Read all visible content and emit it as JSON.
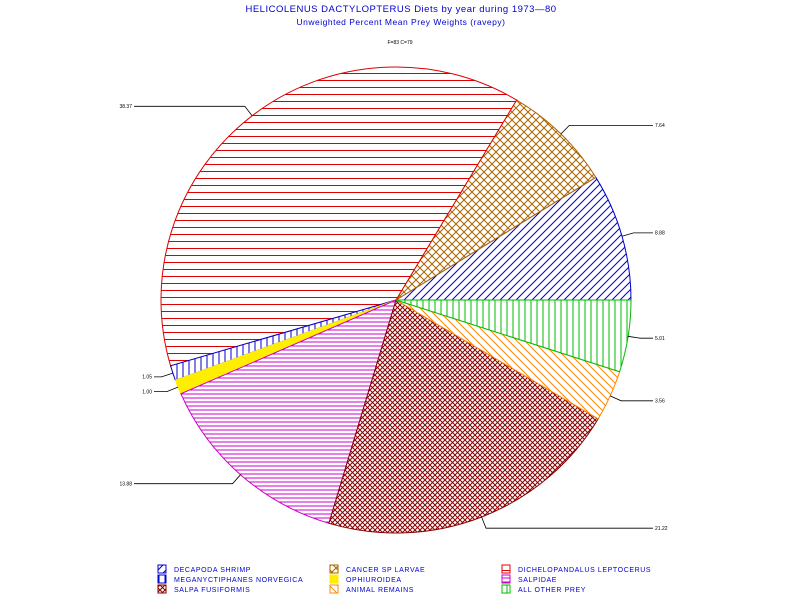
{
  "chart_data": {
    "type": "pie",
    "title": "HELICOLENUS  DACTYLOPTERUS  Diets  by  year  during  1973—80",
    "subtitle": "Unweighted  Percent  Mean  Prey  Weights  (ravepy)",
    "note": "F=83  C=79",
    "legend_position": "bottom",
    "slices": [
      {
        "label": "DECAPODA SHRIMP",
        "value": 8.88,
        "display": "8.88",
        "color": "#0000cc",
        "pattern": "diag-right"
      },
      {
        "label": "CANCER SP LARVAE",
        "value": 7.64,
        "display": "7.64",
        "color": "#aa6600",
        "pattern": "crosshatch"
      },
      {
        "label": "DICHELOPANDALUS LEPTOCERUS",
        "value": 38.37,
        "display": "38.37",
        "color": "#dd0000",
        "pattern": "horizontal"
      },
      {
        "label": "MEGANYCTIPHANES NORVEGICA",
        "value": 1.05,
        "display": "1.05",
        "color": "#0000cc",
        "pattern": "vertical"
      },
      {
        "label": "OPHIUROIDEA",
        "value": 1.0,
        "display": "1.00",
        "color": "#ffee00",
        "pattern": "solid"
      },
      {
        "label": "SALPIDAE",
        "value": 13.88,
        "display": "13.88",
        "color": "#cc00cc",
        "pattern": "horizontal-dense"
      },
      {
        "label": "SALPA FUSIFORMIS",
        "value": 21.22,
        "display": "21.22",
        "color": "#880000",
        "pattern": "crosshatch-dense"
      },
      {
        "label": "ANIMAL REMAINS",
        "value": 3.56,
        "display": "3.56",
        "color": "#ff8800",
        "pattern": "diag-left"
      },
      {
        "label": "ALL OTHER PREY",
        "value": 5.01,
        "display": "5.01",
        "color": "#00bb00",
        "pattern": "vertical"
      }
    ],
    "legend": [
      {
        "label": "DECAPODA  SHRIMP",
        "color": "#0000cc",
        "pattern": "diag-right"
      },
      {
        "label": "CANCER  SP  LARVAE",
        "color": "#aa6600",
        "pattern": "crosshatch"
      },
      {
        "label": "DICHELOPANDALUS  LEPTOCERUS",
        "color": "#dd0000",
        "pattern": "horizontal"
      },
      {
        "label": "MEGANYCTIPHANES  NORVEGICA",
        "color": "#0000cc",
        "pattern": "vertical"
      },
      {
        "label": "OPHIUROIDEA",
        "color": "#ffee00",
        "pattern": "solid"
      },
      {
        "label": "SALPIDAE",
        "color": "#cc00cc",
        "pattern": "horizontal-dense"
      },
      {
        "label": "SALPA  FUSIFORMIS",
        "color": "#880000",
        "pattern": "crosshatch-dense"
      },
      {
        "label": "ANIMAL  REMAINS",
        "color": "#ff8800",
        "pattern": "diag-left"
      },
      {
        "label": "ALL  OTHER  PREY",
        "color": "#00bb00",
        "pattern": "vertical"
      }
    ]
  }
}
